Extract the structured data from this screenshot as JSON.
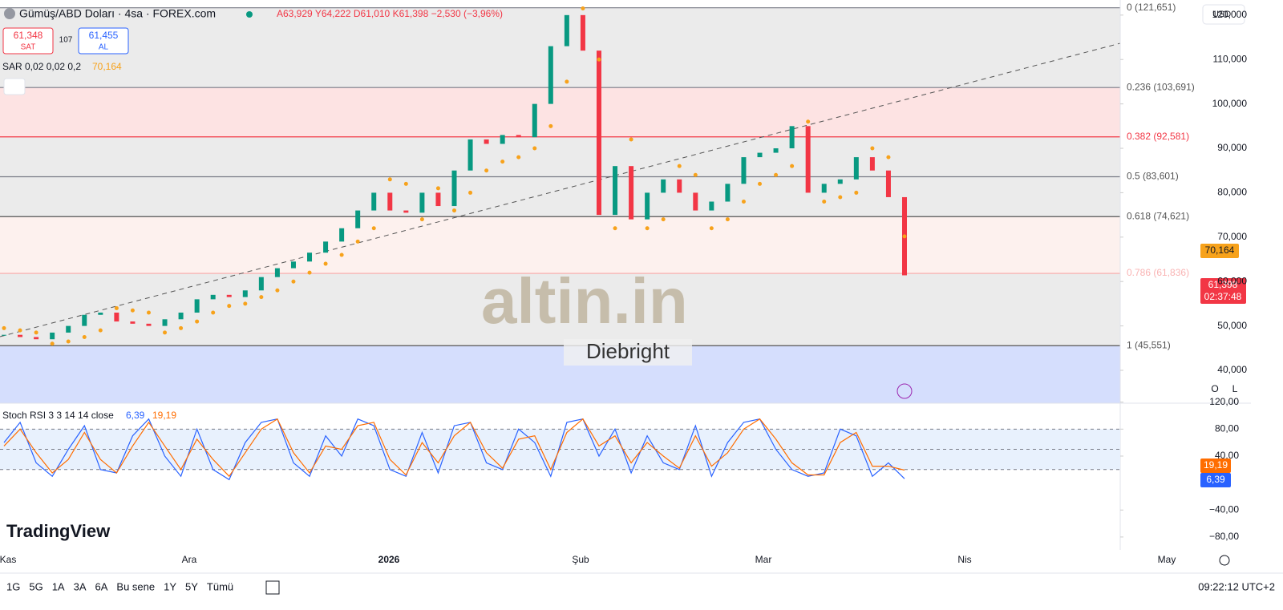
{
  "header": {
    "symbol": "Gümüş/ABD Doları · 4sa · FOREX.com",
    "ohlc": "A63,929 Y64,222 D61,010 K61,398 −2,530 (−3,96%)",
    "sell_price": "61,348",
    "sell_label": "SAT",
    "spread": "107",
    "buy_price": "61,455",
    "buy_label": "AL",
    "sar_label": "SAR 0,02 0,02 0,2",
    "sar_value": "70,164",
    "currency": "USD",
    "sar_badge": "70,164",
    "price_badge": "61,398",
    "countdown": "02:37:48",
    "watermark": "altin.in",
    "watermark_user": "Diebright",
    "brand": "TradingView",
    "scale_o": "O",
    "scale_l": "L"
  },
  "chart_data": [
    {
      "type": "candlestick",
      "up_color": "#089981",
      "down_color": "#f23645",
      "close": [
        48000,
        47500,
        47000,
        48500,
        50000,
        52500,
        53000,
        51000,
        50500,
        50000,
        51500,
        53000,
        56000,
        57000,
        56500,
        58000,
        61000,
        63000,
        64500,
        66500,
        69000,
        72000,
        76000,
        80000,
        76000,
        75500,
        80000,
        77000,
        85000,
        92000,
        91000,
        93000,
        92500,
        100000,
        113000,
        120000,
        112000,
        75000,
        86000,
        74000,
        80000,
        83000,
        80000,
        76000,
        78000,
        82000,
        88000,
        89000,
        90000,
        95000,
        80000,
        82000,
        83000,
        88000,
        85000,
        79000,
        61398
      ],
      "sar_color": "#f7a21b",
      "sar": [
        49500,
        49000,
        48500,
        46000,
        46500,
        47500,
        49000,
        54000,
        53500,
        53000,
        48500,
        49500,
        51000,
        53000,
        54500,
        55000,
        56500,
        58000,
        60000,
        62000,
        64000,
        66000,
        69000,
        72000,
        83000,
        82000,
        74000,
        81000,
        76000,
        80000,
        85000,
        87000,
        88000,
        90000,
        95000,
        105000,
        121500,
        110000,
        72000,
        92000,
        72000,
        74000,
        86000,
        84000,
        72000,
        74000,
        78000,
        82000,
        84000,
        86000,
        96000,
        78000,
        79000,
        80000,
        90000,
        88000,
        70164
      ],
      "ylim": [
        32600,
        123400
      ],
      "yticks": [
        {
          "value": 40000,
          "label": "40,000"
        },
        {
          "value": 50000,
          "label": "50,000"
        },
        {
          "value": 60000,
          "label": "60,000"
        },
        {
          "value": 70000,
          "label": "70,000"
        },
        {
          "value": 80000,
          "label": "80,000"
        },
        {
          "value": 90000,
          "label": "90,000"
        },
        {
          "value": 100000,
          "label": "100,000"
        },
        {
          "value": 110000,
          "label": "110,000"
        },
        {
          "value": 120000,
          "label": "120,000"
        }
      ],
      "fib_levels": [
        {
          "value": 121651,
          "label": "0 (121,651)"
        },
        {
          "value": 103691,
          "label": "0.236 (103,691)"
        },
        {
          "value": 92581,
          "label": "0.382 (92,581)"
        },
        {
          "value": 83601,
          "label": "0.5 (83,601)"
        },
        {
          "value": 74621,
          "label": "0.618 (74,621)"
        },
        {
          "value": 61836,
          "label": "0.786 (61,836)"
        },
        {
          "value": 45551,
          "label": "1 (45,551)"
        }
      ],
      "x_labels": [
        "Kas",
        "Ara",
        "2026",
        "Şub",
        "Mar",
        "Nis",
        "May"
      ]
    },
    {
      "type": "line",
      "title": "Stoch RSI 3 3 14 14 close",
      "ylim": [
        -92,
        122
      ],
      "yticks": [
        {
          "value": 120,
          "label": "120,00"
        },
        {
          "value": 80,
          "label": "80,00"
        },
        {
          "value": 40,
          "label": "40,00"
        },
        {
          "value": -40,
          "label": "−40,00"
        },
        {
          "value": -80,
          "label": "−80,00"
        }
      ],
      "series": [
        {
          "name": "6,39",
          "color": "#2962ff",
          "values": [
            60,
            90,
            30,
            10,
            50,
            85,
            20,
            15,
            70,
            95,
            40,
            10,
            80,
            20,
            5,
            60,
            90,
            95,
            30,
            10,
            70,
            40,
            95,
            85,
            20,
            10,
            75,
            15,
            85,
            90,
            30,
            20,
            80,
            60,
            10,
            90,
            95,
            40,
            80,
            15,
            70,
            30,
            20,
            85,
            10,
            60,
            90,
            95,
            50,
            20,
            10,
            15,
            80,
            70,
            10,
            30,
            6.39
          ]
        },
        {
          "name": "19,19",
          "color": "#ff6d00",
          "values": [
            55,
            80,
            45,
            15,
            35,
            75,
            35,
            15,
            55,
            90,
            55,
            20,
            65,
            35,
            10,
            45,
            80,
            95,
            45,
            15,
            55,
            50,
            85,
            90,
            35,
            12,
            60,
            30,
            70,
            90,
            45,
            22,
            65,
            70,
            20,
            75,
            95,
            55,
            70,
            30,
            60,
            40,
            22,
            70,
            25,
            45,
            80,
            95,
            65,
            30,
            12,
            12,
            60,
            75,
            25,
            25,
            19.19
          ]
        }
      ]
    }
  ],
  "toolbar": {
    "ranges": [
      "1G",
      "5G",
      "1A",
      "3A",
      "6A",
      "Bu sene",
      "1Y",
      "5Y",
      "Tümü"
    ],
    "clock": "09:22:12 UTC+2"
  }
}
